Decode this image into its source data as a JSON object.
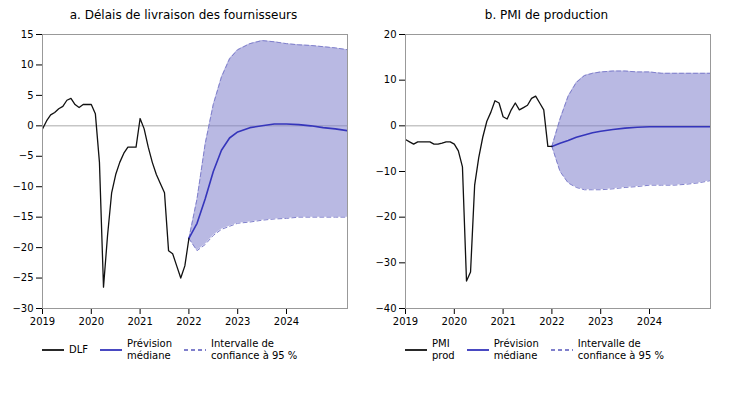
{
  "chart_data": [
    {
      "type": "line",
      "title": "a. Délais de livraison des fournisseurs",
      "xlim": [
        2019.0,
        2025.25
      ],
      "xticks": [
        2019,
        2020,
        2021,
        2022,
        2023,
        2024
      ],
      "ylim": [
        -30,
        15
      ],
      "yticks": [
        -30,
        -25,
        -20,
        -15,
        -10,
        -5,
        0,
        5,
        10,
        15
      ],
      "grid": false,
      "legend": "bottom",
      "hlines": [
        {
          "value": 0,
          "color": "#AAAAAA"
        }
      ],
      "series": [
        {
          "name": "DLF",
          "type": "line",
          "color": "#111111",
          "x": [
            2019.0,
            2019.083,
            2019.167,
            2019.25,
            2019.333,
            2019.417,
            2019.5,
            2019.583,
            2019.667,
            2019.75,
            2019.833,
            2019.917,
            2020.0,
            2020.083,
            2020.167,
            2020.25,
            2020.333,
            2020.417,
            2020.5,
            2020.583,
            2020.667,
            2020.75,
            2020.833,
            2020.917,
            2021.0,
            2021.083,
            2021.167,
            2021.25,
            2021.333,
            2021.417,
            2021.5,
            2021.583,
            2021.667,
            2021.75,
            2021.833,
            2021.917,
            2022.0
          ],
          "values": [
            -0.5,
            0.8,
            1.8,
            2.2,
            2.8,
            3.2,
            4.2,
            4.5,
            3.5,
            3.0,
            3.5,
            3.5,
            3.5,
            2.0,
            -6.0,
            -26.5,
            -18.0,
            -11.0,
            -8.0,
            -6.0,
            -4.5,
            -3.5,
            -3.5,
            -3.5,
            1.2,
            -0.5,
            -3.5,
            -6.0,
            -8.0,
            -9.5,
            -11.0,
            -20.5,
            -21.0,
            -23.0,
            -25.0,
            -23.0,
            -18.5
          ]
        },
        {
          "name": "Prévision\nmédiane",
          "type": "line",
          "color": "#3535BB",
          "x": [
            2022.0,
            2022.167,
            2022.333,
            2022.5,
            2022.667,
            2022.833,
            2023.0,
            2023.25,
            2023.5,
            2023.75,
            2024.0,
            2024.25,
            2024.5,
            2024.75,
            2025.0,
            2025.25
          ],
          "values": [
            -18.5,
            -16.0,
            -12.0,
            -7.5,
            -4.0,
            -2.0,
            -1.0,
            -0.3,
            0.0,
            0.3,
            0.3,
            0.2,
            0.0,
            -0.3,
            -0.5,
            -0.8
          ]
        },
        {
          "name": "Intervalle de\nconfiance à 95 %",
          "type": "band",
          "color": "#8080CC",
          "line_style": "dashed",
          "x": [
            2022.0,
            2022.167,
            2022.333,
            2022.5,
            2022.667,
            2022.833,
            2023.0,
            2023.25,
            2023.5,
            2023.75,
            2024.0,
            2024.25,
            2024.5,
            2024.75,
            2025.0,
            2025.25
          ],
          "upper": [
            -18.5,
            -12.0,
            -3.0,
            3.5,
            8.0,
            11.0,
            12.5,
            13.5,
            14.0,
            13.8,
            13.5,
            13.3,
            13.2,
            13.0,
            12.8,
            12.5
          ],
          "lower": [
            -18.5,
            -20.5,
            -19.5,
            -18.0,
            -17.0,
            -16.5,
            -16.0,
            -15.8,
            -15.5,
            -15.3,
            -15.2,
            -15.0,
            -15.0,
            -15.0,
            -15.0,
            -15.0
          ]
        }
      ]
    },
    {
      "type": "line",
      "title": "b. PMI de production",
      "xlim": [
        2019.0,
        2025.25
      ],
      "xticks": [
        2019,
        2020,
        2021,
        2022,
        2023,
        2024
      ],
      "ylim": [
        -40,
        20
      ],
      "yticks": [
        -40,
        -30,
        -20,
        -10,
        0,
        10,
        20
      ],
      "grid": false,
      "legend": "bottom",
      "hlines": [
        {
          "value": 0,
          "color": "#AAAAAA"
        }
      ],
      "series": [
        {
          "name": "PMI\nprod",
          "type": "line",
          "color": "#111111",
          "x": [
            2019.0,
            2019.083,
            2019.167,
            2019.25,
            2019.333,
            2019.417,
            2019.5,
            2019.583,
            2019.667,
            2019.75,
            2019.833,
            2019.917,
            2020.0,
            2020.083,
            2020.167,
            2020.25,
            2020.333,
            2020.417,
            2020.5,
            2020.583,
            2020.667,
            2020.75,
            2020.833,
            2020.917,
            2021.0,
            2021.083,
            2021.167,
            2021.25,
            2021.333,
            2021.417,
            2021.5,
            2021.583,
            2021.667,
            2021.75,
            2021.833,
            2021.917,
            2022.0
          ],
          "values": [
            -3.0,
            -3.5,
            -4.0,
            -3.5,
            -3.5,
            -3.5,
            -3.5,
            -4.0,
            -4.0,
            -3.8,
            -3.5,
            -3.5,
            -4.0,
            -5.5,
            -9.0,
            -34.0,
            -32.0,
            -13.0,
            -7.0,
            -2.5,
            1.0,
            3.0,
            5.5,
            5.0,
            2.0,
            1.5,
            3.5,
            5.0,
            3.5,
            4.0,
            4.5,
            6.0,
            6.5,
            5.0,
            3.5,
            -4.5,
            -4.5
          ]
        },
        {
          "name": "Prévision\nmédiane",
          "type": "line",
          "color": "#3535BB",
          "x": [
            2022.0,
            2022.167,
            2022.333,
            2022.5,
            2022.667,
            2022.833,
            2023.0,
            2023.25,
            2023.5,
            2023.75,
            2024.0,
            2024.25,
            2024.5,
            2024.75,
            2025.0,
            2025.25
          ],
          "values": [
            -4.5,
            -3.8,
            -3.2,
            -2.5,
            -2.0,
            -1.5,
            -1.2,
            -0.8,
            -0.5,
            -0.3,
            -0.2,
            -0.2,
            -0.2,
            -0.2,
            -0.2,
            -0.2
          ]
        },
        {
          "name": "Intervalle de\nconfiance à 95 %",
          "type": "band",
          "color": "#8080CC",
          "line_style": "dashed",
          "x": [
            2022.0,
            2022.167,
            2022.333,
            2022.5,
            2022.667,
            2022.833,
            2023.0,
            2023.25,
            2023.5,
            2023.75,
            2024.0,
            2024.25,
            2024.5,
            2024.75,
            2025.0,
            2025.25
          ],
          "upper": [
            -4.5,
            1.5,
            6.5,
            9.5,
            11.0,
            11.5,
            11.8,
            12.0,
            12.0,
            11.8,
            11.8,
            11.5,
            11.5,
            11.5,
            11.5,
            11.5
          ],
          "lower": [
            -4.5,
            -10.0,
            -12.5,
            -13.5,
            -14.0,
            -14.0,
            -14.0,
            -13.8,
            -13.5,
            -13.3,
            -13.0,
            -13.0,
            -13.0,
            -12.8,
            -12.5,
            -12.0
          ]
        }
      ]
    }
  ]
}
